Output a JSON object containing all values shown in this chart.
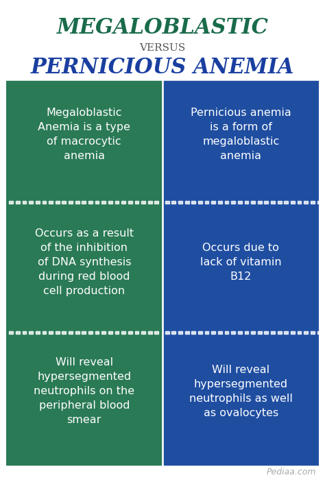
{
  "title_line1": "MEGALOBLASTIC",
  "title_line2": "VERSUS",
  "title_line3": "PERNICIOUS ANEMIA",
  "title_color1": "#1a6b4a",
  "title_color2": "#555555",
  "title_color3": "#1a3fa0",
  "bg_color": "#ffffff",
  "left_color": "#2a7a55",
  "right_color": "#1f4ea1",
  "text_color": "#ffffff",
  "watermark": "Pediaa.com",
  "watermark_color": "#aaaaaa",
  "rows": [
    {
      "left": "Megaloblastic\nAnemia is a type\nof macrocytic\nanemia",
      "right": "Pernicious anemia\nis a form of\nmegaloblastic\nanemia"
    },
    {
      "left": "Occurs as a result\nof the inhibition\nof DNA synthesis\nduring red blood\ncell production",
      "right": "Occurs due to\nlack of vitamin\nB12"
    },
    {
      "left": "Will reveal\nhypersegmented\nneutrophils on the\nperipheral blood\nsmear",
      "right": "Will reveal\nhypersegmented\nneutrophils as well\nas ovalocytes"
    }
  ]
}
